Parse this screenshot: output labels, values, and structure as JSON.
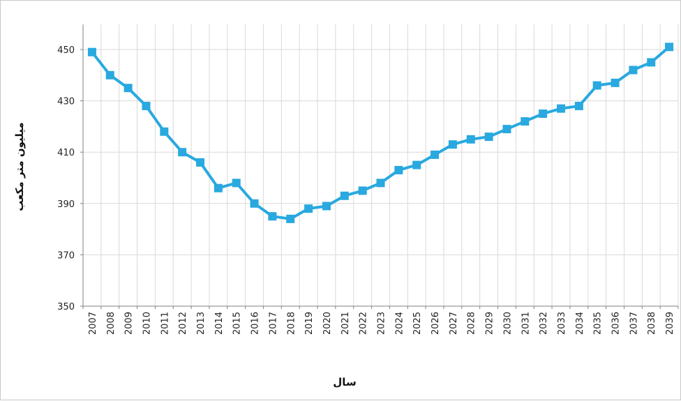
{
  "chart_data": {
    "type": "line",
    "title": "",
    "xlabel": "سال",
    "ylabel": "میلیون متر مکعب",
    "x": [
      2007,
      2008,
      2009,
      2010,
      2011,
      2012,
      2013,
      2014,
      2015,
      2016,
      2017,
      2018,
      2019,
      2020,
      2021,
      2022,
      2023,
      2024,
      2025,
      2026,
      2027,
      2028,
      2029,
      2030,
      2031,
      2032,
      2033,
      2034,
      2035,
      2036,
      2037,
      2038,
      2039
    ],
    "series": [
      {
        "name": "",
        "color": "#29a9df",
        "values": [
          449,
          440,
          435,
          428,
          418,
          410,
          406,
          396,
          398,
          390,
          385,
          384,
          388,
          389,
          393,
          395,
          398,
          403,
          405,
          409,
          413,
          415,
          416,
          419,
          422,
          425,
          427,
          428,
          436,
          437,
          442,
          445,
          451
        ]
      }
    ],
    "ylim": [
      350,
      460
    ],
    "yticks": [
      350,
      370,
      390,
      410,
      430,
      450
    ],
    "grid": true,
    "marker": "square"
  }
}
